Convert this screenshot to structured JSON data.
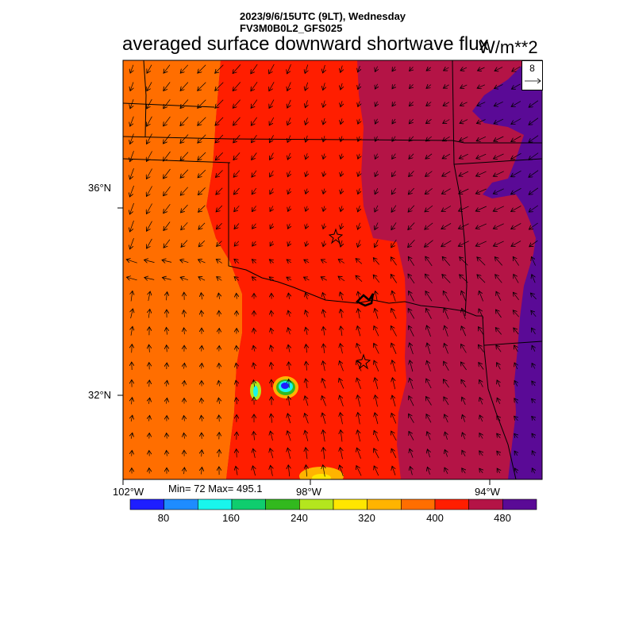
{
  "header": {
    "date_line": "2023/9/6/15UTC (9LT), Wednesday",
    "model_line": "FV3M0B0L2_GFS025",
    "title": "averaged surface downward shortwave flux",
    "units": "W/m**2"
  },
  "axes": {
    "lat_labels": [
      "36°N",
      "32°N"
    ],
    "lon_labels": [
      "102°W",
      "98°W",
      "94°W"
    ]
  },
  "stats": {
    "min_max_text": "Min= 72 Max= 495.1"
  },
  "wind_reference": {
    "value": "8"
  },
  "colorbar": {
    "colors": [
      "#1e1eff",
      "#1e8cff",
      "#19f5ec",
      "#0fcd6e",
      "#32b91e",
      "#b4e61e",
      "#ffe600",
      "#ffb400",
      "#ff6e00",
      "#ff1e00",
      "#b41446",
      "#5a0a96"
    ],
    "tick_labels": [
      "80",
      "160",
      "240",
      "320",
      "400",
      "480"
    ]
  },
  "field_colors": {
    "orange": "#ff6e00",
    "red": "#ff1e00",
    "crimson": "#b41446",
    "purple": "#5a0a96"
  }
}
